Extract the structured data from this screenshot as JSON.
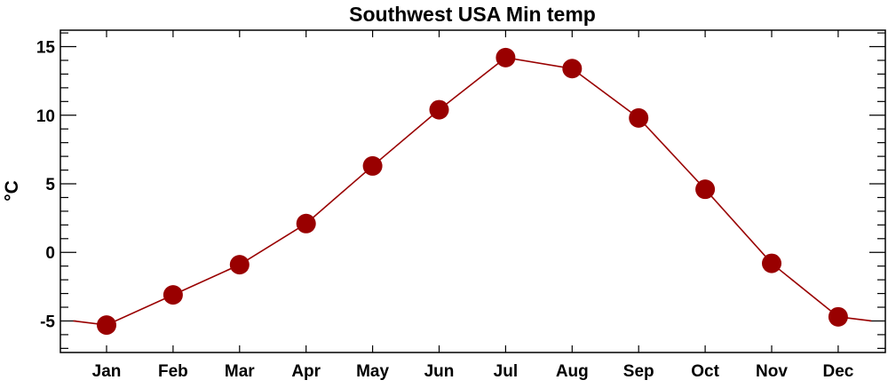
{
  "chart_data": {
    "type": "line",
    "title": "Southwest USA Min temp",
    "xlabel": "",
    "ylabel": "°C",
    "categories": [
      "Jan",
      "Feb",
      "Mar",
      "Apr",
      "May",
      "Jun",
      "Jul",
      "Aug",
      "Sep",
      "Oct",
      "Nov",
      "Dec"
    ],
    "series": [
      {
        "name": "Min temp",
        "values": [
          -5.3,
          -3.1,
          -0.9,
          2.1,
          6.3,
          10.4,
          14.2,
          13.4,
          9.8,
          4.6,
          -0.8,
          -4.7
        ],
        "color": "#990000"
      }
    ],
    "ylim": [
      -7.3,
      16.2
    ],
    "yticks": [
      -5,
      0,
      5,
      10,
      15
    ],
    "ytick_labels": [
      "-5",
      "0",
      "5",
      "10",
      "15"
    ],
    "y_minor_step": 1,
    "grid": false,
    "legend": "none"
  }
}
